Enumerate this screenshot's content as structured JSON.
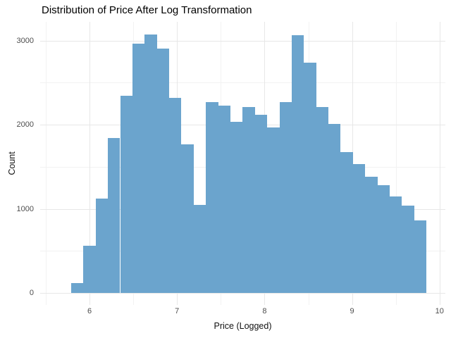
{
  "page": {
    "background": "#ffffff"
  },
  "chart_data": {
    "type": "bar",
    "subtype": "histogram",
    "title": "Distribution of Price After Log Transformation",
    "xlabel": "Price (Logged)",
    "ylabel": "Count",
    "bar_color": "#6BA4CD",
    "grid_major_color": "#E7E7E7",
    "grid_minor_color": "#F2F2F2",
    "tick_label_color": "#4D4D4D",
    "title_color": "#000000",
    "bin_start": 5.79,
    "bin_width": 0.14,
    "counts": [
      120,
      560,
      1120,
      1840,
      2340,
      2960,
      3070,
      2900,
      2320,
      1770,
      1050,
      2270,
      2230,
      2030,
      2210,
      2120,
      1970,
      2270,
      3060,
      2740,
      2210,
      2010,
      1670,
      1530,
      1380,
      1280,
      1150,
      1040,
      860
    ],
    "x_ticks_major": [
      6,
      7,
      8,
      9,
      10
    ],
    "x_ticks_minor": [
      5.5,
      6.5,
      7.5,
      8.5,
      9.5
    ],
    "y_ticks_major": [
      0,
      1000,
      2000,
      3000
    ],
    "y_ticks_minor": [
      500,
      1500,
      2500
    ],
    "xlim": [
      5.436,
      10.066
    ],
    "ylim": [
      -142,
      3222
    ],
    "grid": "on",
    "legend": "none"
  }
}
